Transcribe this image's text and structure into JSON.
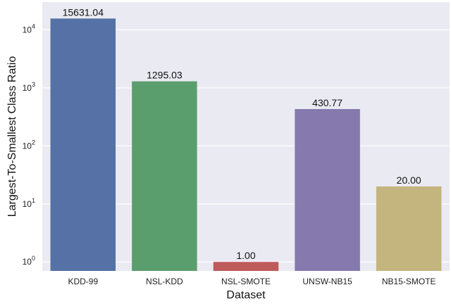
{
  "chart_data": {
    "type": "bar",
    "title": "",
    "xlabel": "Dataset",
    "ylabel": "Largest-To-Smallest Class Ratio",
    "yscale": "log",
    "ylim": [
      0.7,
      30000
    ],
    "yticks": [
      {
        "value": 1,
        "base": "10",
        "exp": "0"
      },
      {
        "value": 10,
        "base": "10",
        "exp": "1"
      },
      {
        "value": 100,
        "base": "10",
        "exp": "2"
      },
      {
        "value": 1000,
        "base": "10",
        "exp": "3"
      },
      {
        "value": 10000,
        "base": "10",
        "exp": "4"
      }
    ],
    "grid": true,
    "legend": "none",
    "categories": [
      "KDD-99",
      "NSL-KDD",
      "NSL-SMOTE",
      "UNSW-NB15",
      "NB15-SMOTE"
    ],
    "values": [
      15631.04,
      1295.03,
      1.0,
      430.77,
      20.0
    ],
    "value_labels": [
      "15631.04",
      "1295.03",
      "1.00",
      "430.77",
      "20.00"
    ],
    "colors": [
      "#5571a5",
      "#5b9e6d",
      "#bf5a5b",
      "#8579ae",
      "#c4b57f"
    ],
    "background": "#eaeaf2"
  }
}
